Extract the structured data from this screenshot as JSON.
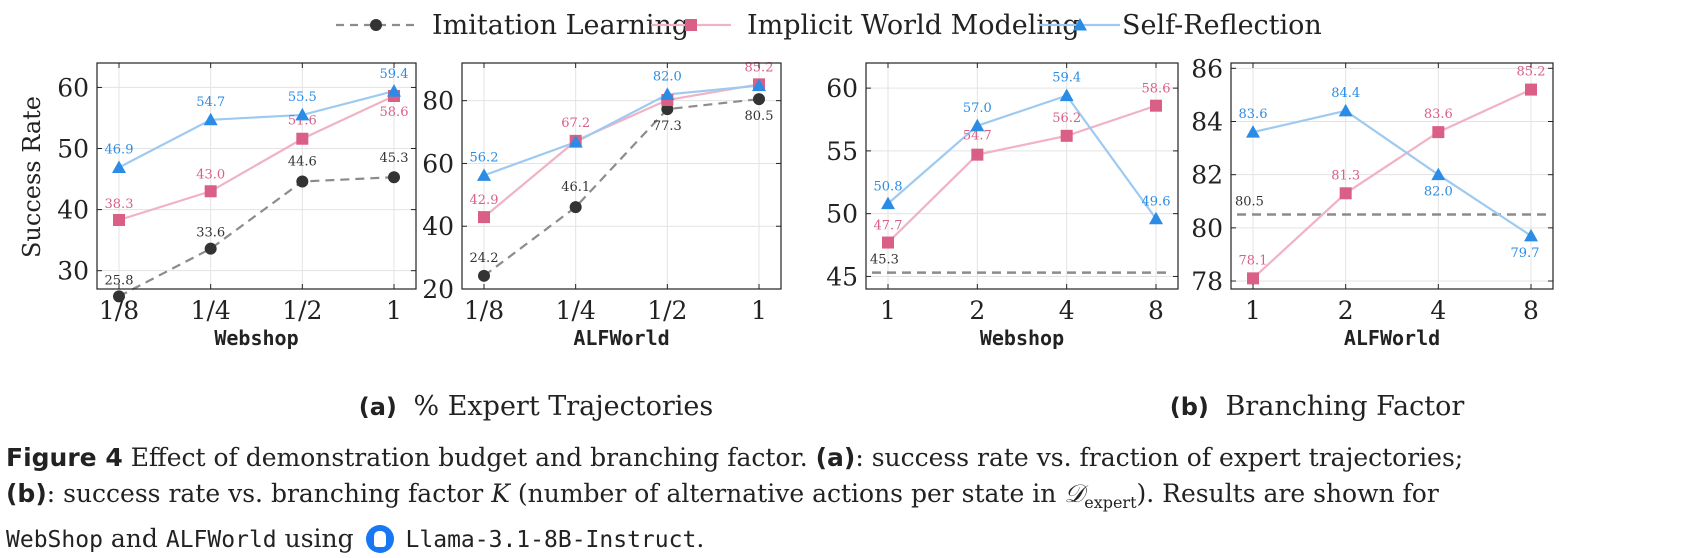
{
  "legend": {
    "series": [
      {
        "name": "Imitation Learning",
        "color": "#333333",
        "marker": "circle",
        "dashed": true
      },
      {
        "name": "Implicit World Modeling",
        "color": "#d95f86",
        "marker": "square",
        "dashed": false
      },
      {
        "name": "Self-Reflection",
        "color": "#2b8ce6",
        "marker": "triangle",
        "dashed": false
      }
    ]
  },
  "colors": {
    "il_line": "#8c8c8c",
    "il_marker": "#333333",
    "iwm_line": "#f0b3c3",
    "iwm_marker": "#d95f86",
    "sr_line": "#9ecaf2",
    "sr_marker": "#2b8ce6",
    "grid": "#e3e3e3"
  },
  "ylabel": "Success Rate",
  "subcaptions": {
    "a_label": "(a)",
    "a_text": "% Expert Trajectories",
    "b_label": "(b)",
    "b_text": "Branching Factor"
  },
  "caption": {
    "fig_label": "Figure 4",
    "line1": "Effect of demonstration budget and branching factor.",
    "a_ref": "(a)",
    "a_desc": ": success rate vs. fraction of expert trajectories;",
    "b_ref": "(b)",
    "b_desc1": ": success rate vs. branching factor",
    "k_symbol": "K",
    "b_desc2": "(number of alternative actions per state in",
    "d_symbol": "𝒟",
    "d_sub": "expert",
    "b_desc3": "). Results are shown for",
    "env1": "WebShop",
    "and_text": "and",
    "env2": "ALFWorld",
    "using_text": "using",
    "model": "Llama-3.1-8B-Instruct",
    "end": "."
  },
  "chart_data": [
    {
      "type": "line",
      "group": "a",
      "xlabel": "Webshop",
      "categories": [
        "1/8",
        "1/4",
        "1/2",
        "1"
      ],
      "ylim": [
        27,
        64
      ],
      "yticks": [
        30,
        40,
        50,
        60
      ],
      "series": [
        {
          "name": "Imitation Learning",
          "values": [
            25.8,
            33.6,
            44.6,
            45.3
          ],
          "labels": [
            "25.8",
            "33.6",
            "44.6",
            "45.3"
          ]
        },
        {
          "name": "Implicit World Modeling",
          "values": [
            38.3,
            43.0,
            51.6,
            58.6
          ],
          "labels": [
            "38.3",
            "43.0",
            "51.6",
            "58.6"
          ]
        },
        {
          "name": "Self-Reflection",
          "values": [
            46.9,
            54.7,
            55.5,
            59.4
          ],
          "labels": [
            "46.9",
            "54.7",
            "55.5",
            "59.4"
          ]
        }
      ]
    },
    {
      "type": "line",
      "group": "a",
      "xlabel": "ALFWorld",
      "categories": [
        "1/8",
        "1/4",
        "1/2",
        "1"
      ],
      "ylim": [
        20,
        92
      ],
      "yticks": [
        20,
        40,
        60,
        80
      ],
      "series": [
        {
          "name": "Imitation Learning",
          "values": [
            24.2,
            46.1,
            77.3,
            80.5
          ],
          "labels": [
            "24.2",
            "46.1",
            "77.3",
            "80.5"
          ]
        },
        {
          "name": "Implicit World Modeling",
          "values": [
            42.9,
            67.2,
            80.2,
            85.2
          ],
          "labels": [
            "42.9",
            "67.2",
            "",
            "85.2"
          ]
        },
        {
          "name": "Self-Reflection",
          "values": [
            56.2,
            66.8,
            82.0,
            84.8
          ],
          "labels": [
            "56.2",
            "",
            "82.0",
            ""
          ]
        }
      ]
    },
    {
      "type": "line",
      "group": "b",
      "xlabel": "Webshop",
      "categories": [
        "1",
        "2",
        "4",
        "8"
      ],
      "ylim": [
        44,
        62
      ],
      "yticks": [
        45,
        50,
        55,
        60
      ],
      "reference": {
        "value": 45.3,
        "label": "45.3"
      },
      "series": [
        {
          "name": "Implicit World Modeling",
          "values": [
            47.7,
            54.7,
            56.2,
            58.6
          ],
          "labels": [
            "47.7",
            "54.7",
            "56.2",
            "58.6"
          ]
        },
        {
          "name": "Self-Reflection",
          "values": [
            50.8,
            57.0,
            59.4,
            49.6
          ],
          "labels": [
            "50.8",
            "57.0",
            "59.4",
            "49.6"
          ]
        }
      ]
    },
    {
      "type": "line",
      "group": "b",
      "xlabel": "ALFWorld",
      "categories": [
        "1",
        "2",
        "4",
        "8"
      ],
      "ylim": [
        77.7,
        86.2
      ],
      "yticks": [
        78,
        80,
        82,
        84,
        86
      ],
      "reference": {
        "value": 80.5,
        "label": "80.5"
      },
      "series": [
        {
          "name": "Implicit World Modeling",
          "values": [
            78.1,
            81.3,
            83.6,
            85.2
          ],
          "labels": [
            "78.1",
            "81.3",
            "83.6",
            "85.2"
          ]
        },
        {
          "name": "Self-Reflection",
          "values": [
            83.6,
            84.4,
            82.0,
            79.7
          ],
          "labels": [
            "83.6",
            "84.4",
            "82.0",
            "79.7"
          ]
        }
      ]
    }
  ]
}
